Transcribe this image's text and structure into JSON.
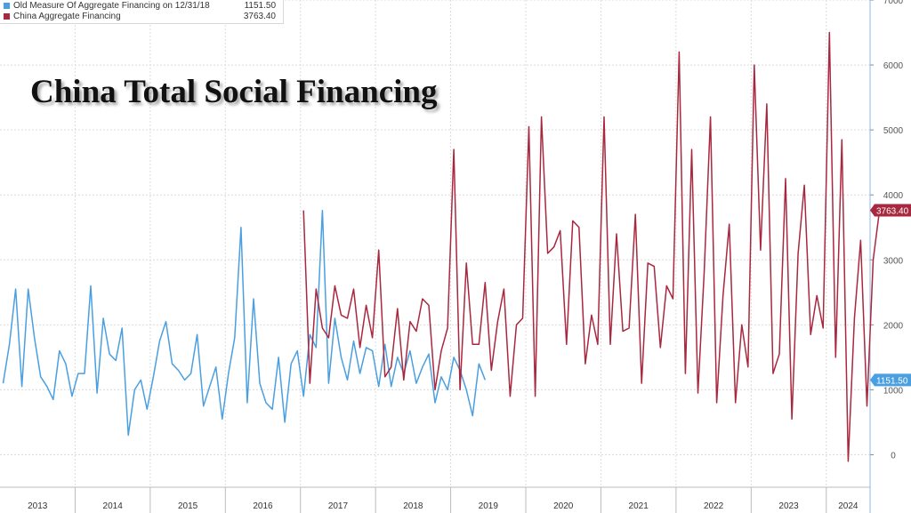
{
  "legend": {
    "old_label": "Old Measure Of Aggregate Financing on 12/31/18",
    "old_value": "1151.50",
    "new_label": "China Aggregate Financing",
    "new_value": "3763.40"
  },
  "colors": {
    "old": "#4a9fe0",
    "new": "#a8283f",
    "grid": "#dcdcdc"
  },
  "chart_data": {
    "type": "line",
    "title": "China Total Social Financing",
    "xlabel": "",
    "ylabel": "",
    "ylim": [
      -500,
      7000
    ],
    "yticks": [
      0,
      1000,
      2000,
      3000,
      4000,
      5000,
      6000,
      7000
    ],
    "ytick_labels": [
      "0",
      "1000",
      "2000",
      "3000",
      "4000",
      "5000",
      "6000",
      "7000"
    ],
    "year_labels": [
      "2013",
      "2014",
      "2015",
      "2016",
      "2017",
      "2018",
      "2019",
      "2020",
      "2021",
      "2022",
      "2023",
      "2024"
    ],
    "x_range": [
      "2013-01",
      "2024-07"
    ],
    "grid": true,
    "legend_position": "top-left",
    "series": [
      {
        "name": "Old Measure Of Aggregate Financing on 12/31/18",
        "start": "2013-01",
        "last_value_label": "1151.50",
        "values": [
          1100,
          1700,
          2550,
          1050,
          2550,
          1800,
          1200,
          1050,
          850,
          1600,
          1400,
          900,
          1250,
          1250,
          2600,
          950,
          2100,
          1550,
          1450,
          1950,
          300,
          1000,
          1150,
          700,
          1200,
          1750,
          2050,
          1400,
          1300,
          1150,
          1250,
          1850,
          750,
          1050,
          1350,
          550,
          1250,
          1800,
          3500,
          800,
          2400,
          1100,
          800,
          700,
          1500,
          500,
          1400,
          1600,
          900,
          1850,
          1650,
          3760,
          1100,
          2100,
          1500,
          1150,
          1750,
          1250,
          1650,
          1600,
          1050,
          1700,
          1050,
          1500,
          1250,
          1600,
          1100,
          1350,
          1550,
          800,
          1200,
          1000,
          1500,
          1300,
          1000,
          600,
          1400,
          1151.5
        ]
      },
      {
        "name": "China Aggregate Financing",
        "start": "2017-01",
        "last_value_label": "3763.40",
        "values": [
          3760,
          1100,
          2550,
          1950,
          1800,
          2600,
          2150,
          2100,
          2550,
          1650,
          2300,
          1800,
          3150,
          1200,
          1350,
          2250,
          1150,
          2050,
          1900,
          2400,
          2300,
          1000,
          1600,
          1950,
          4700,
          1000,
          2950,
          1700,
          1700,
          2650,
          1300,
          2050,
          2550,
          900,
          2000,
          2100,
          5050,
          900,
          5200,
          3100,
          3200,
          3450,
          1700,
          3600,
          3500,
          1400,
          2150,
          1700,
          5200,
          1700,
          3400,
          1900,
          1950,
          3700,
          1100,
          2950,
          2900,
          1650,
          2600,
          2400,
          6200,
          1250,
          4700,
          950,
          2800,
          5200,
          800,
          2450,
          3550,
          800,
          2000,
          1350,
          6000,
          3150,
          5400,
          1250,
          1550,
          4250,
          550,
          3100,
          4150,
          1850,
          2450,
          1950,
          6500,
          1500,
          4850,
          -100,
          2100,
          3300,
          750,
          3000,
          3763.4
        ]
      }
    ]
  }
}
